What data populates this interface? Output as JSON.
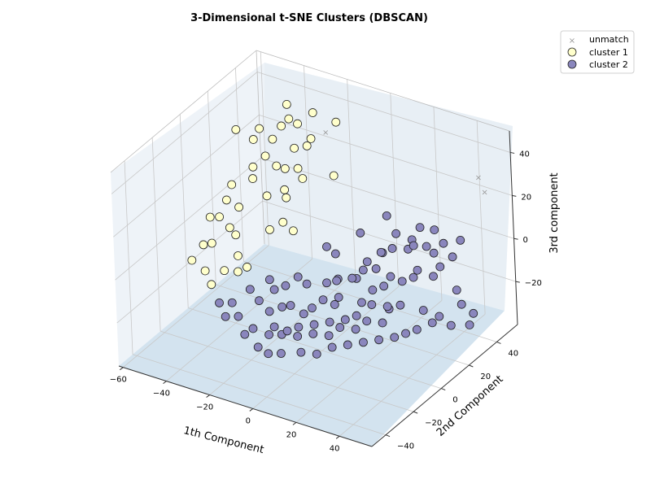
{
  "chart_data": {
    "type": "scatter",
    "title": "3-Dimensional t-SNE Clusters (DBSCAN)",
    "xlabel": "1th Component",
    "ylabel": "2nd Component",
    "zlabel": "3rd component",
    "xlim": [
      -62,
      55
    ],
    "ylim": [
      -50,
      55
    ],
    "zlim": [
      -40,
      50
    ],
    "x_ticks": [
      -60,
      -40,
      -20,
      0,
      20,
      40
    ],
    "y_ticks": [
      -40,
      -20,
      0,
      20,
      40
    ],
    "z_ticks": [
      -20,
      0,
      20,
      40
    ],
    "grid": true,
    "legend_position": "upper-right-outside",
    "colors": {
      "unmatch": "#999999",
      "cluster1_fill": "#ffffcc",
      "cluster2_fill": "#8a86bd",
      "edge": "#222222",
      "pane_back": "#e8eff5",
      "pane_side": "#eef3f8",
      "pane_floor": "#d3e3ef",
      "grid": "#c8c8c8"
    },
    "series": [
      {
        "name": "unmatch",
        "marker": "x",
        "points": [
          [
            -17,
            34,
            38
          ],
          [
            47,
            44,
            32
          ],
          [
            55,
            36,
            32
          ]
        ]
      },
      {
        "name": "cluster 1",
        "marker": "o",
        "points": [
          [
            -32,
            30,
            48
          ],
          [
            -20,
            30,
            48
          ],
          [
            -30,
            28,
            43
          ],
          [
            -26,
            28,
            42
          ],
          [
            -12,
            34,
            44
          ],
          [
            -35,
            30,
            37
          ],
          [
            -20,
            28,
            37
          ],
          [
            -22,
            28,
            33
          ],
          [
            -28,
            28,
            30
          ],
          [
            -38,
            28,
            31
          ],
          [
            -44,
            28,
            34
          ],
          [
            -47,
            28,
            28
          ],
          [
            -55,
            28,
            30
          ],
          [
            -39,
            24,
            25
          ],
          [
            -34,
            24,
            22
          ],
          [
            -30,
            24,
            22
          ],
          [
            -24,
            24,
            24
          ],
          [
            -22,
            24,
            20
          ],
          [
            -10,
            28,
            23
          ],
          [
            -45,
            24,
            18
          ],
          [
            -44,
            22,
            14
          ],
          [
            -35,
            18,
            11
          ],
          [
            -28,
            20,
            15
          ],
          [
            -26,
            18,
            13
          ],
          [
            -54,
            22,
            8
          ],
          [
            -54,
            18,
            3
          ],
          [
            -47,
            16,
            3
          ],
          [
            -28,
            18,
            1
          ],
          [
            -22,
            16,
            0
          ],
          [
            -33,
            16,
            -3
          ],
          [
            -55,
            14,
            -3
          ],
          [
            -58,
            12,
            -3
          ],
          [
            -49,
            12,
            -5
          ],
          [
            -45,
            10,
            -6
          ],
          [
            -55,
            8,
            -12
          ],
          [
            -59,
            8,
            -14
          ],
          [
            -43,
            8,
            -14
          ],
          [
            -39,
            8,
            -18
          ],
          [
            -42,
            6,
            -20
          ],
          [
            -56,
            4,
            -23
          ],
          [
            -47,
            4,
            -20
          ],
          [
            -62,
            4,
            -20
          ],
          [
            -52,
            2,
            -27
          ]
        ]
      },
      {
        "name": "cluster 2",
        "marker": "o",
        "points": [
          [
            -4,
            18,
            -6
          ],
          [
            -8,
            18,
            -4
          ],
          [
            4,
            24,
            3
          ],
          [
            14,
            28,
            12
          ],
          [
            18,
            28,
            5
          ],
          [
            24,
            30,
            3
          ],
          [
            28,
            30,
            10
          ],
          [
            32,
            34,
            8
          ],
          [
            36,
            34,
            3
          ],
          [
            44,
            34,
            7
          ],
          [
            40,
            34,
            -2
          ],
          [
            28,
            34,
            -1
          ],
          [
            22,
            30,
            -2
          ],
          [
            14,
            24,
            -3
          ],
          [
            12,
            22,
            -10
          ],
          [
            8,
            22,
            -8
          ],
          [
            4,
            20,
            -16
          ],
          [
            -2,
            16,
            -16
          ],
          [
            -6,
            14,
            -18
          ],
          [
            -14,
            12,
            -20
          ],
          [
            -18,
            12,
            -18
          ],
          [
            -24,
            12,
            -24
          ],
          [
            -28,
            10,
            -26
          ],
          [
            -30,
            10,
            -22
          ],
          [
            -38,
            8,
            -28
          ],
          [
            -34,
            8,
            -32
          ],
          [
            -28,
            6,
            -34
          ],
          [
            -22,
            6,
            -30
          ],
          [
            -18,
            6,
            -28
          ],
          [
            -12,
            6,
            -30
          ],
          [
            -8,
            6,
            -26
          ],
          [
            -4,
            8,
            -22
          ],
          [
            0,
            10,
            -24
          ],
          [
            2,
            10,
            -20
          ],
          [
            10,
            14,
            -22
          ],
          [
            14,
            16,
            -16
          ],
          [
            18,
            18,
            -14
          ],
          [
            20,
            20,
            -10
          ],
          [
            24,
            22,
            -12
          ],
          [
            28,
            24,
            -10
          ],
          [
            30,
            24,
            -6
          ],
          [
            36,
            26,
            -8
          ],
          [
            38,
            28,
            -4
          ],
          [
            44,
            30,
            -14
          ],
          [
            46,
            30,
            -20
          ],
          [
            50,
            32,
            -24
          ],
          [
            48,
            32,
            -30
          ],
          [
            42,
            28,
            -30
          ],
          [
            38,
            26,
            -26
          ],
          [
            32,
            24,
            -24
          ],
          [
            24,
            20,
            -22
          ],
          [
            20,
            18,
            -24
          ],
          [
            18,
            16,
            -30
          ],
          [
            12,
            14,
            -30
          ],
          [
            8,
            12,
            -34
          ],
          [
            2,
            10,
            -34
          ],
          [
            -2,
            8,
            -38
          ],
          [
            -8,
            6,
            -38
          ],
          [
            -14,
            4,
            -40
          ],
          [
            -20,
            2,
            -40
          ],
          [
            -26,
            2,
            -42
          ],
          [
            -32,
            0,
            -40
          ],
          [
            -40,
            2,
            -38
          ],
          [
            -44,
            4,
            -34
          ],
          [
            -50,
            4,
            -36
          ],
          [
            -46,
            2,
            -40
          ],
          [
            -36,
            0,
            -44
          ],
          [
            -30,
            0,
            -48
          ],
          [
            -24,
            -2,
            -48
          ],
          [
            -18,
            -2,
            -46
          ],
          [
            -10,
            0,
            -44
          ],
          [
            -4,
            2,
            -44
          ],
          [
            2,
            4,
            -40
          ],
          [
            8,
            6,
            -38
          ],
          [
            14,
            8,
            -36
          ],
          [
            20,
            10,
            -34
          ],
          [
            26,
            12,
            -32
          ],
          [
            30,
            14,
            -30
          ],
          [
            34,
            16,
            -28
          ],
          [
            40,
            18,
            -24
          ],
          [
            22,
            14,
            -20
          ],
          [
            16,
            12,
            -20
          ],
          [
            10,
            10,
            -26
          ],
          [
            6,
            8,
            -28
          ],
          [
            0,
            6,
            -30
          ],
          [
            -6,
            4,
            -32
          ],
          [
            -12,
            2,
            -34
          ],
          [
            -16,
            0,
            -36
          ],
          [
            -22,
            0,
            -36
          ],
          [
            0,
            12,
            -14
          ],
          [
            6,
            14,
            -12
          ],
          [
            10,
            16,
            -8
          ],
          [
            26,
            28,
            2
          ],
          [
            34,
            30,
            0
          ],
          [
            16,
            20,
            0
          ],
          [
            20,
            22,
            2
          ]
        ]
      }
    ]
  }
}
